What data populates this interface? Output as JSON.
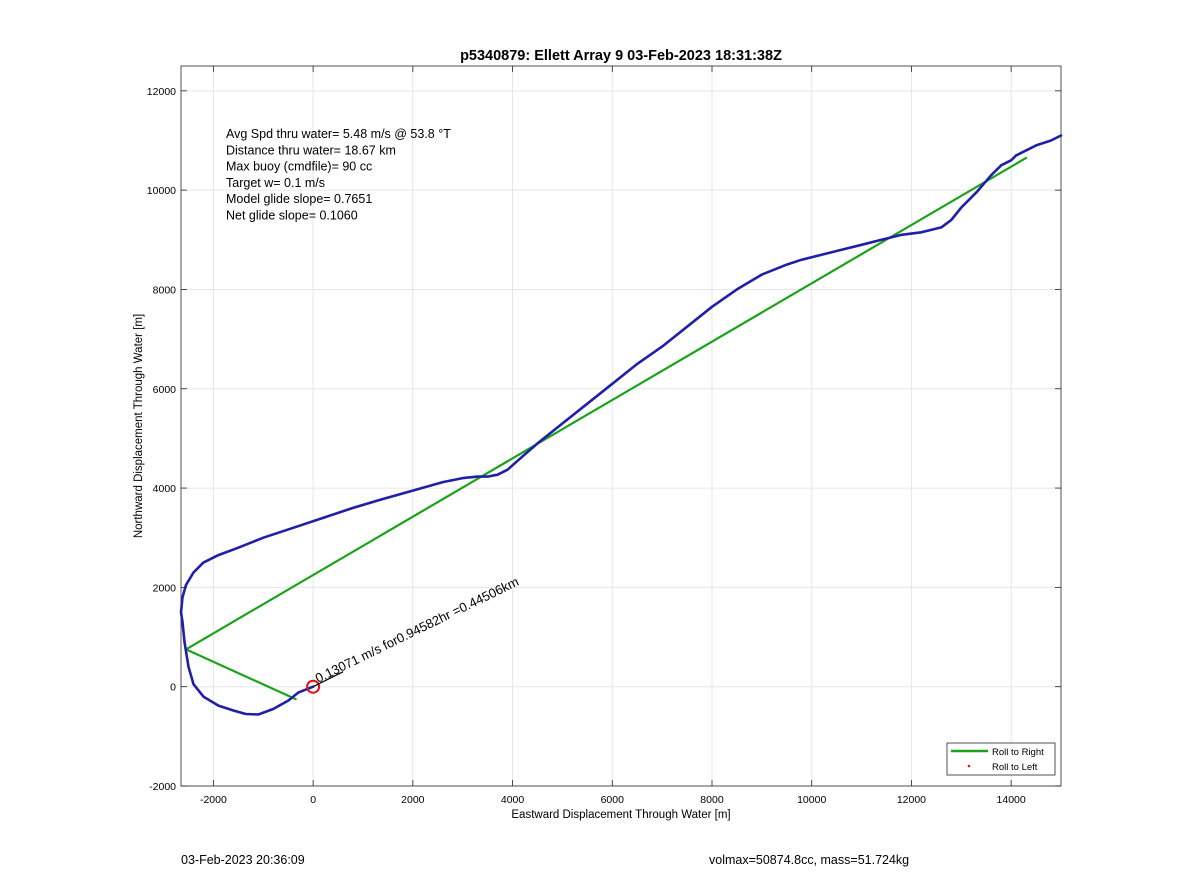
{
  "chart_data": {
    "type": "line",
    "title": "p5340879: Ellett Array 9 03-Feb-2023 18:31:38Z",
    "xlabel": "Eastward Displacement Through Water [m]",
    "ylabel": "Northward Displacement Through Water [m]",
    "xlim": [
      -2650,
      15000
    ],
    "ylim": [
      -2000,
      12500
    ],
    "xticks": [
      -2000,
      0,
      2000,
      4000,
      6000,
      8000,
      10000,
      12000,
      14000
    ],
    "yticks": [
      -2000,
      0,
      2000,
      4000,
      6000,
      8000,
      10000,
      12000
    ],
    "xtick_labels": [
      "-2000",
      "0",
      "2000",
      "4000",
      "6000",
      "8000",
      "10000",
      "12000",
      "14000"
    ],
    "ytick_labels": [
      "-2000",
      "0",
      "2000",
      "4000",
      "6000",
      "8000",
      "10000",
      "12000"
    ],
    "grid": true,
    "legend_position": "bottom-right",
    "legend": [
      {
        "label": "Roll to Right",
        "color": "#1aa31a",
        "style": "line"
      },
      {
        "label": "Roll to Left",
        "color": "#e01010",
        "style": "dot"
      }
    ],
    "info_lines": [
      "Avg Spd thru water=  5.48 m/s @  53.8 °T",
      "Distance thru water= 18.67 km",
      "Max buoy (cmdfile)= 90 cc",
      "Target w= 0.1 m/s",
      "Model glide slope= 0.7651",
      "Net glide slope= 0.1060"
    ],
    "annotation": "0.13071 m/s for0.94582hr =0.44506km",
    "start_marker": {
      "x": 0,
      "y": 0,
      "color": "#e01010"
    },
    "series": [
      {
        "color": "#1f1fa8",
        "x": [
          0,
          -300,
          -500,
          -800,
          -1100,
          -1350,
          -1600,
          -1900,
          -2200,
          -2400,
          -2500,
          -2580,
          -2620,
          -2650,
          -2620,
          -2550,
          -2400,
          -2200,
          -1900,
          -1500,
          -1000,
          -400,
          200,
          800,
          1400,
          2000,
          2600,
          3000,
          3300,
          3500,
          3700,
          3900,
          4100,
          4500,
          5000,
          5500,
          6000,
          6500,
          7000,
          7500,
          8000,
          8500,
          9000,
          9500,
          9800,
          10200,
          10600,
          11000,
          11400,
          11800,
          12200,
          12600,
          12800,
          13000,
          13300,
          13600,
          13800,
          14000,
          14100,
          14200,
          14300,
          14500,
          14800,
          15000
        ],
        "y": [
          0,
          -120,
          -280,
          -450,
          -560,
          -550,
          -480,
          -380,
          -200,
          50,
          400,
          900,
          1300,
          1500,
          1800,
          2050,
          2300,
          2500,
          2650,
          2800,
          3000,
          3200,
          3400,
          3600,
          3780,
          3950,
          4120,
          4200,
          4230,
          4230,
          4270,
          4370,
          4550,
          4900,
          5300,
          5700,
          6100,
          6500,
          6850,
          7250,
          7650,
          8000,
          8300,
          8500,
          8600,
          8700,
          8800,
          8900,
          9000,
          9100,
          9150,
          9250,
          9400,
          9650,
          9950,
          10300,
          10500,
          10600,
          10700,
          10750,
          10800,
          10900,
          11000,
          11100
        ]
      },
      {
        "color": "#1aa31a",
        "x": [
          -350,
          -2550,
          14300
        ],
        "y": [
          -250,
          750,
          10650
        ]
      }
    ]
  },
  "footer": {
    "left": "03-Feb-2023 20:36:09",
    "right": "volmax=50874.8cc, mass=51.724kg"
  }
}
